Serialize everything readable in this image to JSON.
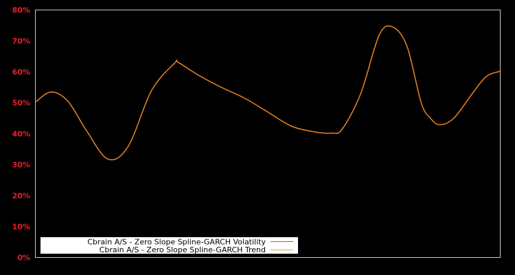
{
  "chart_data": {
    "type": "line",
    "title": "",
    "xlabel": "",
    "ylabel": "",
    "ylim": [
      0,
      80
    ],
    "y_ticks": [
      "0%",
      "10%",
      "20%",
      "30%",
      "40%",
      "50%",
      "60%",
      "70%",
      "80%"
    ],
    "x_ticks": [],
    "grid": false,
    "legend_position": "lower-left",
    "colors": {
      "background": "#000000",
      "axis": "#cccccc",
      "tick_label": "#e8202a",
      "volatility": "#e04040",
      "trend": "#e8821e",
      "legend_bg": "#ffffff"
    },
    "x": [
      0,
      0.034,
      0.07,
      0.11,
      0.156,
      0.2,
      0.25,
      0.3,
      0.307,
      0.35,
      0.4,
      0.45,
      0.5,
      0.55,
      0.6,
      0.637,
      0.66,
      0.7,
      0.74,
      0.77,
      0.8,
      0.83,
      0.85,
      0.87,
      0.9,
      0.94,
      0.97,
      1.0
    ],
    "series": [
      {
        "name": "Cbrain A/S - Zero Slope Spline-GARCH Volatility",
        "values": [
          50.2,
          53.5,
          50.5,
          41.0,
          31.8,
          36.0,
          54.0,
          62.9,
          63.1,
          59.0,
          55.0,
          51.5,
          47.0,
          42.5,
          40.6,
          40.2,
          41.5,
          53.0,
          72.0,
          74.4,
          68.0,
          50.0,
          45.0,
          42.9,
          45.0,
          53.0,
          58.5,
          60.2
        ]
      },
      {
        "name": "Cbrain A/S - Zero Slope Spline-GARCH Trend",
        "values": [
          50.2,
          53.5,
          50.5,
          41.0,
          31.8,
          36.0,
          54.0,
          62.9,
          63.1,
          59.0,
          55.0,
          51.5,
          47.0,
          42.5,
          40.6,
          40.2,
          41.5,
          53.0,
          72.0,
          74.4,
          68.0,
          50.0,
          45.0,
          42.9,
          45.0,
          53.0,
          58.5,
          60.2
        ]
      }
    ]
  },
  "legend": {
    "items": [
      {
        "label": "Cbrain A/S - Zero Slope Spline-GARCH Volatility",
        "color": "#e04040"
      },
      {
        "label": "Cbrain A/S - Zero Slope Spline-GARCH Trend",
        "color": "#d4b040"
      }
    ]
  }
}
